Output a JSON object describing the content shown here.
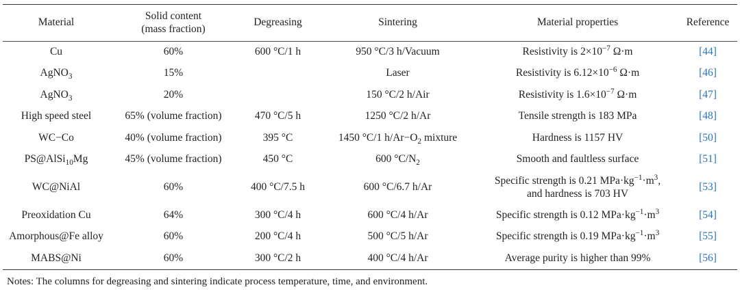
{
  "table": {
    "headers": {
      "material": "Material",
      "solid_line1": "Solid content",
      "solid_line2": "(mass fraction)",
      "degreasing": "Degreasing",
      "sintering": "Sintering",
      "properties": "Material properties",
      "reference": "Reference"
    },
    "rows": [
      {
        "material": "Cu",
        "solid": "60%",
        "degreasing": "600 °C/1 h",
        "sintering": "950 °C/3 h/Vacuum",
        "properties": {
          "pre": "Resistivity is 2×10",
          "sup": "−7",
          "post": " Ω·m"
        },
        "reference": "[44]"
      },
      {
        "material": {
          "pre": "AgNO",
          "sub": "3"
        },
        "solid": "15%",
        "degreasing": "",
        "sintering": "Laser",
        "properties": {
          "pre": "Resistivity is 6.12×10",
          "sup": "−6",
          "post": " Ω·m"
        },
        "reference": "[46]"
      },
      {
        "material": {
          "pre": "AgNO",
          "sub": "3"
        },
        "solid": "20%",
        "degreasing": "",
        "sintering": "150 °C/2 h/Air",
        "properties": {
          "pre": "Resistivity is 1.6×10",
          "sup": "−7",
          "post": " Ω·m"
        },
        "reference": "[47]"
      },
      {
        "material": "High speed steel",
        "solid": "65% (volume fraction)",
        "degreasing": "470 °C/5 h",
        "sintering": "1250 °C/2 h/Ar",
        "properties": "Tensile strength is 183 MPa",
        "reference": "[48]"
      },
      {
        "material": "WC−Co",
        "solid": "40% (volume fraction)",
        "degreasing": "395 °C",
        "sintering": {
          "pre": "1450 °C/1 h/Ar−O",
          "sub": "2",
          "post": " mixture"
        },
        "properties": "Hardness is 1157 HV",
        "reference": "[50]"
      },
      {
        "material": {
          "pre": "PS@AlSi",
          "sub": "10",
          "post": "Mg"
        },
        "solid": "45% (volume fraction)",
        "degreasing": "450 °C",
        "sintering": {
          "pre": "600 °C/N",
          "sub": "2"
        },
        "properties": "Smooth and faultless surface",
        "reference": "[51]"
      },
      {
        "material": "WC@NiAl",
        "solid": "60%",
        "degreasing": "400 °C/7.5 h",
        "sintering": "600 °C/6.7 h/Ar",
        "properties": {
          "line1_pre": "Specific strength is 0.21 MPa·kg",
          "line1_sup1": "−1",
          "line1_mid": "·m",
          "line1_sup2": "3",
          "line1_post": ",",
          "line2": "and hardness is 703 HV"
        },
        "reference": "[53]"
      },
      {
        "material": "Preoxidation Cu",
        "solid": "64%",
        "degreasing": "300 °C/4 h",
        "sintering": "600 °C/4 h/Ar",
        "properties": {
          "pre": "Specific strength is 0.12 MPa·kg",
          "sup1": "−1",
          "mid": "·m",
          "sup2": "3"
        },
        "reference": "[54]"
      },
      {
        "material": "Amorphous@Fe alloy",
        "solid": "60%",
        "degreasing": "200 °C/4 h",
        "sintering": "500 °C/5 h/Ar",
        "properties": {
          "pre": "Specific strength is 0.19 MPa·kg",
          "sup1": "−1",
          "mid": "·m",
          "sup2": "3"
        },
        "reference": "[55]"
      },
      {
        "material": "MABS@Ni",
        "solid": "60%",
        "degreasing": "300 °C/2 h",
        "sintering": "400 °C/4 h/Ar",
        "properties": "Average purity is higher than 99%",
        "reference": "[56]"
      }
    ]
  },
  "notes": "Notes: The columns for degreasing and sintering indicate process temperature, time, and environment.",
  "colors": {
    "reference_link": "#2a72b8",
    "text": "#222222",
    "rule": "#333333"
  }
}
